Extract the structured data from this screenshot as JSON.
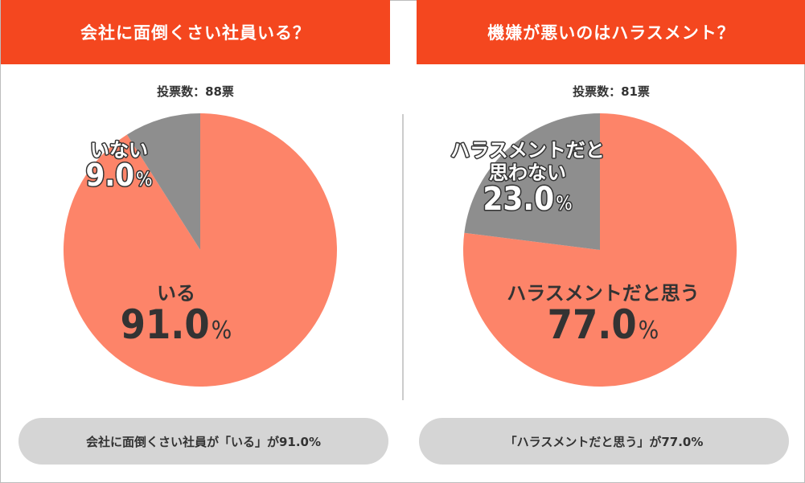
{
  "colors": {
    "header": "#f4471f",
    "slice_main": "#fd8469",
    "slice_other": "#8e8e8e",
    "pill": "#d5d5d5",
    "divider": "#cccccc",
    "text_dark": "#333333",
    "white": "#ffffff"
  },
  "panels": [
    {
      "header": "会社に面倒くさい社員いる？",
      "votes": "投票数：88票",
      "summary": "会社に面倒くさい社員が「いる」が91.0%"
    },
    {
      "header": "機嫌が悪いのはハラスメント？",
      "votes": "投票数：81票",
      "summary": "「ハラスメントだと思う」が77.0%"
    }
  ],
  "chart_data": [
    {
      "type": "pie",
      "title": "会社に面倒くさい社員いる？",
      "slices": [
        {
          "label": "いる",
          "label_lines": [
            "いる"
          ],
          "value": 91.0,
          "pct_text": "91.0",
          "unit": "%"
        },
        {
          "label": "いない",
          "label_lines": [
            "いない"
          ],
          "value": 9.0,
          "pct_text": "9.0",
          "unit": "%"
        }
      ]
    },
    {
      "type": "pie",
      "title": "機嫌が悪いのはハラスメント？",
      "slices": [
        {
          "label": "ハラスメントだと思う",
          "label_lines": [
            "ハラスメントだと思う"
          ],
          "value": 77.0,
          "pct_text": "77.0",
          "unit": "%"
        },
        {
          "label": "ハラスメントだと思わない",
          "label_lines": [
            "ハラスメントだと",
            "思わない"
          ],
          "value": 23.0,
          "pct_text": "23.0",
          "unit": "%"
        }
      ]
    }
  ]
}
